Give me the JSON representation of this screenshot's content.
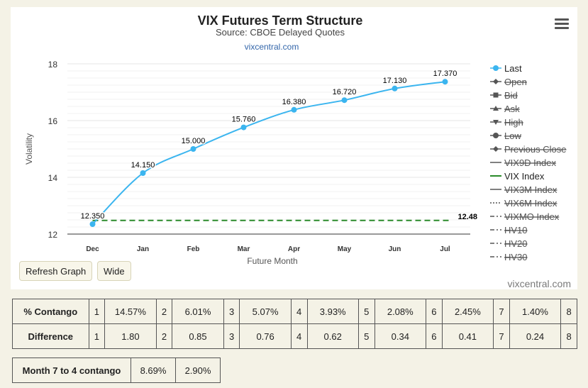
{
  "chart": {
    "title": "VIX Futures Term Structure",
    "subtitle": "Source: CBOE Delayed Quotes",
    "link": "vixcentral.com",
    "credit": "vixcentral.com",
    "refresh_label": "Refresh Graph",
    "wide_label": "Wide",
    "vix_label": "12.48",
    "colors": {
      "last": "#3bb5ef",
      "vix": "#2a8a2a",
      "hidden": "#555555"
    }
  },
  "chart_data": {
    "type": "line",
    "title": "VIX Futures Term Structure",
    "subtitle": "Source: CBOE Delayed Quotes",
    "xlabel": "Future Month",
    "ylabel": "Volatility",
    "categories": [
      "Dec",
      "Jan",
      "Feb",
      "Mar",
      "Apr",
      "May",
      "Jun",
      "Jul"
    ],
    "ylim": [
      12,
      18
    ],
    "yticks": [
      12,
      14,
      16,
      18
    ],
    "grid": true,
    "legend_position": "right",
    "series": [
      {
        "name": "Last",
        "values": [
          12.35,
          14.15,
          15.0,
          15.76,
          16.38,
          16.72,
          17.13,
          17.37
        ],
        "labels": [
          "12.350",
          "14.150",
          "15.000",
          "15.760",
          "16.380",
          "16.720",
          "17.130",
          "17.370"
        ]
      },
      {
        "name": "VIX Index",
        "values": [
          12.48,
          12.48,
          12.48,
          12.48,
          12.48,
          12.48,
          12.48,
          12.48
        ]
      }
    ],
    "legend": [
      {
        "name": "Last",
        "marker": "circle",
        "visible": true
      },
      {
        "name": "Open",
        "marker": "diamond",
        "visible": false
      },
      {
        "name": "Bid",
        "marker": "square",
        "visible": false
      },
      {
        "name": "Ask",
        "marker": "triangle",
        "visible": false
      },
      {
        "name": "High",
        "marker": "triangle-down",
        "visible": false
      },
      {
        "name": "Low",
        "marker": "circle",
        "visible": false
      },
      {
        "name": "Previous Close",
        "marker": "diamond",
        "visible": false
      },
      {
        "name": "VIX9D Index",
        "marker": "line",
        "visible": false
      },
      {
        "name": "VIX Index",
        "marker": "line",
        "visible": true
      },
      {
        "name": "VIX3M Index",
        "marker": "line",
        "visible": false
      },
      {
        "name": "VIX6M Index",
        "marker": "dotted",
        "visible": false
      },
      {
        "name": "VIXMO Index",
        "marker": "dashdot",
        "visible": false
      },
      {
        "name": "HV10",
        "marker": "dashdot",
        "visible": false
      },
      {
        "name": "HV20",
        "marker": "dashdot",
        "visible": false
      },
      {
        "name": "HV30",
        "marker": "dashdot",
        "visible": false
      }
    ]
  },
  "contango_table": {
    "rows": [
      {
        "label": "% Contango",
        "cells": [
          [
            "1",
            "14.57%"
          ],
          [
            "2",
            "6.01%"
          ],
          [
            "3",
            "5.07%"
          ],
          [
            "4",
            "3.93%"
          ],
          [
            "5",
            "2.08%"
          ],
          [
            "6",
            "2.45%"
          ],
          [
            "7",
            "1.40%"
          ]
        ],
        "last": "8"
      },
      {
        "label": "Difference",
        "cells": [
          [
            "1",
            "1.80"
          ],
          [
            "2",
            "0.85"
          ],
          [
            "3",
            "0.76"
          ],
          [
            "4",
            "0.62"
          ],
          [
            "5",
            "0.34"
          ],
          [
            "6",
            "0.41"
          ],
          [
            "7",
            "0.24"
          ]
        ],
        "last": "8"
      }
    ]
  },
  "month_table": {
    "label": "Month 7 to 4 contango",
    "values": [
      "8.69%",
      "2.90%"
    ]
  }
}
